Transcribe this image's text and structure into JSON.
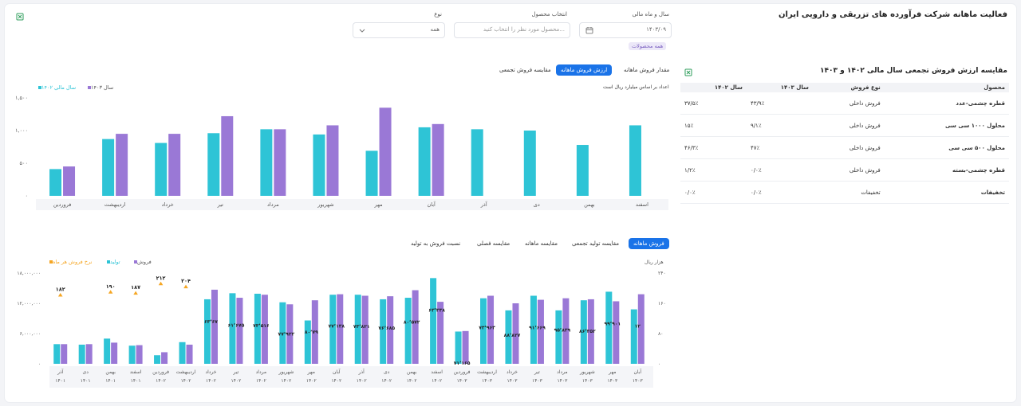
{
  "header": {
    "title": "فعالیت ماهانه شرکت فرآورده های تزریقی و دارویی ایران"
  },
  "filters": {
    "year_month_label": "سال و ماه مالی",
    "year_month_value": "۱۴۰۳/۰۹",
    "product_label": "انتخاب محصول",
    "product_placeholder": "محصول مورد نظر را انتخاب کنید...",
    "type_label": "نوع",
    "type_value": "همه",
    "all_products_tag": "همه محصولات"
  },
  "comparison": {
    "title": "مقایسه ارزش فروش تجمعی سال مالی ۱۴۰۲ و ۱۴۰۳",
    "headers": [
      "محصول",
      "نوع فروش",
      "سال ۱۴۰۳",
      "سال ۱۴۰۲"
    ],
    "rows": [
      {
        "product": "قطره چشمی-عدد",
        "type": "فروش داخلی",
        "y1403": "۴۳/۹٪",
        "y1402": "۳۷/۵٪"
      },
      {
        "product": "محلول ۱۰۰۰ سی سی",
        "type": "فروش داخلی",
        "y1403": "۹/۱٪",
        "y1402": "۱۵٪"
      },
      {
        "product": "محلول ۵۰۰ سی سی",
        "type": "فروش داخلی",
        "y1403": "۴۷٪",
        "y1402": "۴۶/۳٪"
      },
      {
        "product": "قطره چشمی-بسته",
        "type": "فروش داخلی",
        "y1403": "۰/۰٪",
        "y1402": "۱/۲٪"
      },
      {
        "product": "تخفیفات",
        "type": "تخفیفات",
        "y1403": "۰/۰٪",
        "y1402": "۰/۰٪"
      }
    ]
  },
  "top_tabs": [
    "مقدار فروش ماهانه",
    "ارزش فروش ماهانه",
    "مقایسه فروش تجمعی"
  ],
  "top_tab_active": 1,
  "bottom_tabs": [
    "فروش ماهانه",
    "مقایسه تولید تجمعی",
    "مقایسه ماهانه",
    "مقایسه فصلی",
    "نسبت فروش به تولید"
  ],
  "bottom_tab_active": 0,
  "colors": {
    "teal": "#2ec4d6",
    "purple": "#9a78d6",
    "orange": "#f5a623",
    "accent": "#1a73e8"
  },
  "chart_data": [
    {
      "type": "bar",
      "subtitle": "اعداد بر اساس میلیارد ریال است",
      "categories": [
        "فروردین",
        "اردیبهشت",
        "خرداد",
        "تیر",
        "مرداد",
        "شهریور",
        "مهر",
        "آبان",
        "آذر",
        "دی",
        "بهمن",
        "اسفند"
      ],
      "series": [
        {
          "name": "سال مالی ۱۴۰۲",
          "values": [
            410,
            870,
            810,
            960,
            1020,
            940,
            690,
            1050,
            1020,
            1000,
            780,
            1080
          ]
        },
        {
          "name": "سال ۱۴۰۳",
          "values": [
            450,
            950,
            950,
            1220,
            1020,
            1080,
            1350,
            1100,
            null,
            null,
            null,
            null
          ]
        }
      ],
      "yticks": [
        "۰",
        "۵۰۰",
        "۱,۰۰۰",
        "۱,۵۰۰"
      ],
      "ylim": [
        0,
        1500
      ]
    },
    {
      "type": "bar",
      "ylabel_right": "هزار ریال",
      "legend": [
        "فروش",
        "تولید",
        "نرخ فروش هر ماه"
      ],
      "categories": [
        [
          "آذر",
          "۱۴۰۱"
        ],
        [
          "دی",
          "۱۴۰۱"
        ],
        [
          "بهمن",
          "۱۴۰۱"
        ],
        [
          "اسفند",
          "۱۴۰۱"
        ],
        [
          "فروردین",
          "۱۴۰۲"
        ],
        [
          "اردیبهشت",
          "۱۴۰۲"
        ],
        [
          "خرداد",
          "۱۴۰۲"
        ],
        [
          "تیر",
          "۱۴۰۲"
        ],
        [
          "مرداد",
          "۱۴۰۲"
        ],
        [
          "شهریور",
          "۱۴۰۲"
        ],
        [
          "مهر",
          "۱۴۰۲"
        ],
        [
          "آبان",
          "۱۴۰۲"
        ],
        [
          "آذر",
          "۱۴۰۲"
        ],
        [
          "دی",
          "۱۴۰۲"
        ],
        [
          "بهمن",
          "۱۴۰۲"
        ],
        [
          "اسفند",
          "۱۴۰۲"
        ],
        [
          "فروردین",
          "۱۴۰۳"
        ],
        [
          "اردیبهشت",
          "۱۴۰۳"
        ],
        [
          "خرداد",
          "۱۴۰۳"
        ],
        [
          "تیر",
          "۱۴۰۳"
        ],
        [
          "مرداد",
          "۱۴۰۳"
        ],
        [
          "شهریور",
          "۱۴۰۳"
        ],
        [
          "مهر",
          "۱۴۰۳"
        ],
        [
          "آبان",
          "۱۴۰۳"
        ]
      ],
      "sales": [
        3900000,
        3900000,
        4200000,
        3700000,
        2300000,
        3800000,
        14700000,
        13100000,
        13700000,
        11800000,
        12600000,
        13800000,
        13500000,
        13400000,
        14600000,
        12300000,
        6500000,
        13500000,
        12000000,
        12700000,
        13000000,
        12800000,
        12400000,
        13800000
      ],
      "production": [
        3900000,
        3800000,
        5000000,
        3600000,
        1700000,
        4300000,
        12800000,
        14000000,
        13900000,
        12200000,
        8600000,
        13700000,
        13700000,
        12800000,
        13100000,
        17000000,
        6400000,
        13000000,
        10600000,
        13500000,
        10600000,
        12600000,
        14300000,
        10800000
      ],
      "rate": [
        182,
        311,
        190,
        187,
        212,
        204,
        null,
        null,
        null,
        null,
        null,
        null,
        null,
        null,
        null,
        null,
        null,
        null,
        null,
        null,
        null,
        null,
        null,
        null
      ],
      "rate_labels": [
        "۱۸۲",
        "۳۱۱",
        "۱۹۰",
        "۱۸۷",
        "۲۱۲",
        "۲۰۴"
      ],
      "bar_labels": [
        "",
        "",
        "",
        "",
        "",
        "",
        "۶۳٬۶۷",
        "۶۱٬۶۷۵",
        "۷۳٬۵۱۶",
        "۷۷٬۹۲۲",
        "۸۰٬۷۹",
        "۷۷٬۱۳۸",
        "۷۳٬۸۲۱",
        "۷۶٬۶۸۵",
        "۸۰٬۵۷۲",
        "۶۳٬۳۳۸",
        "۷۱٬۱۶۵",
        "۷۳٬۹۶۳",
        "۸۸٬۸۲۷",
        "۹۱٬۶۶۹",
        "۹۵٬۸۳۹",
        "۸۶٬۳۵۲",
        "۹۹٬۹۰۱",
        "۱۲"
      ],
      "yticks_left": [
        "۰",
        "۶,۰۰۰,۰۰۰",
        "۱۲,۰۰۰,۰۰۰",
        "۱۸,۰۰۰,۰۰۰"
      ],
      "yticks_right": [
        "۰",
        "۸۰",
        "۱۶۰",
        "۲۴۰"
      ],
      "ylim_left": [
        0,
        18000000
      ],
      "ylim_right": [
        0,
        240
      ]
    }
  ]
}
